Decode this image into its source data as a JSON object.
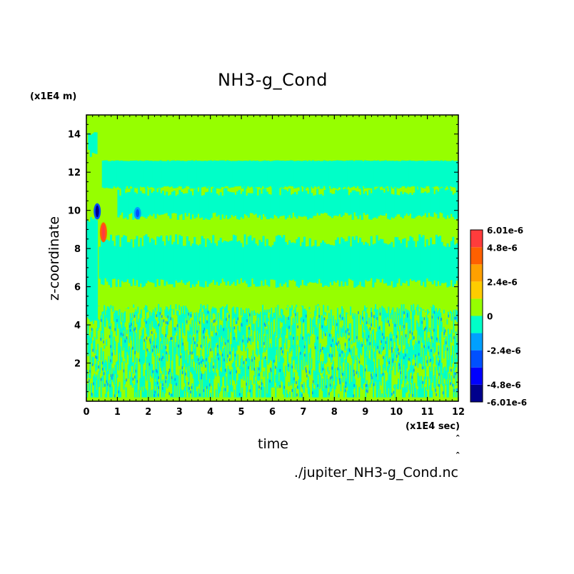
{
  "chart_data": {
    "type": "heatmap",
    "title": "NH3-g_Cond",
    "xlabel": "time",
    "ylabel": "z-coordinate",
    "x_unit": "(x1E4 sec)",
    "y_unit": "(x1E4 m)",
    "file_label": "./jupiter_NH3-g_Cond.nc",
    "xlim": [
      0,
      12
    ],
    "ylim": [
      0,
      15
    ],
    "x_ticks": [
      "0",
      "1",
      "2",
      "3",
      "4",
      "5",
      "6",
      "7",
      "8",
      "9",
      "10",
      "11",
      "12"
    ],
    "y_ticks": [
      "2",
      "4",
      "6",
      "8",
      "10",
      "12",
      "14"
    ],
    "colorbar": {
      "labels": [
        "6.01e-6",
        "4.8e-6",
        "2.4e-6",
        "0",
        "-2.4e-6",
        "-4.8e-6",
        "-6.01e-6"
      ],
      "levels": [
        -6.01e-06,
        -4.8e-06,
        -3.6e-06,
        -2.4e-06,
        -1.2e-06,
        0,
        1.2e-06,
        2.4e-06,
        3.6e-06,
        4.8e-06,
        6.01e-06
      ],
      "colors": [
        "#00008c",
        "#0000ff",
        "#0050ff",
        "#00a0ff",
        "#00ffc8",
        "#96ff00",
        "#ffcc00",
        "#ffa000",
        "#ff6000",
        "#ff3c3c"
      ]
    },
    "bands": [
      {
        "z": [
          0,
          4.8
        ],
        "value": "mixed",
        "note": "noisy mix of 0 and -1.2e-6"
      },
      {
        "z": [
          4.8,
          6.2
        ],
        "value": 6e-07
      },
      {
        "z": [
          6.2,
          8.5
        ],
        "value": -6e-07
      },
      {
        "z": [
          8.5,
          9.6
        ],
        "value": 6e-07
      },
      {
        "z": [
          9.6,
          11.0
        ],
        "value": -6e-07
      },
      {
        "z": [
          11.0,
          12.6
        ],
        "value": 6e-07
      },
      {
        "z": [
          12.6,
          15
        ],
        "value": 6e-07
      }
    ],
    "features": [
      {
        "x": 0.55,
        "z": [
          8.4,
          9.3
        ],
        "value": 6e-06,
        "color": "red"
      },
      {
        "x": 0.35,
        "z": [
          9.6,
          10.3
        ],
        "value": -6e-06,
        "color": "dark-blue"
      },
      {
        "x": 1.65,
        "z": [
          9.6,
          10.1
        ],
        "value": -3e-06,
        "color": "blue"
      }
    ]
  }
}
